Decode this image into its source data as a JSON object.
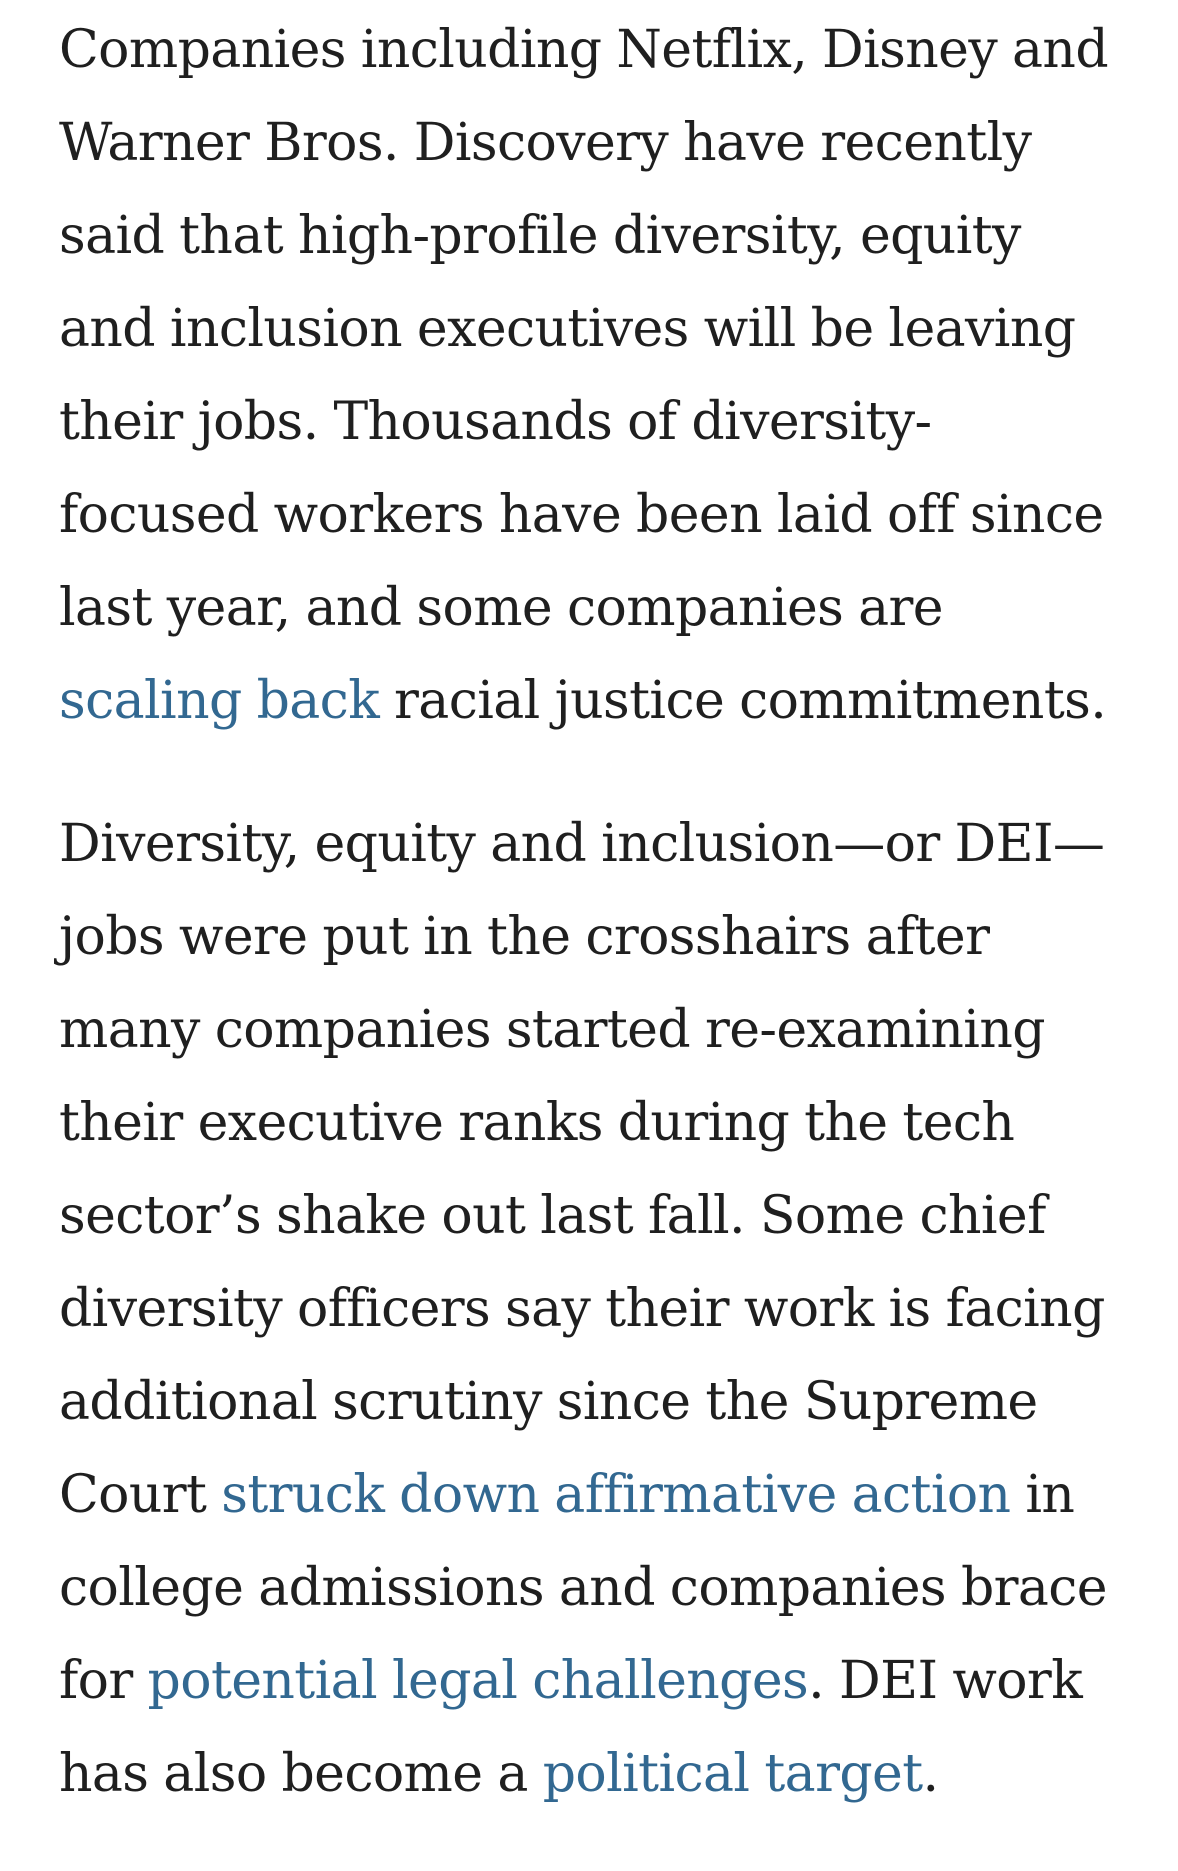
{
  "article": {
    "paragraphs": [
      {
        "lines": [
          [
            {
              "text": "Companies including Netflix, Disney and"
            }
          ],
          [
            {
              "text": "Warner Bros. Discovery have recently"
            }
          ],
          [
            {
              "text": "said that high-profile diversity, equity"
            }
          ],
          [
            {
              "text": "and inclusion executives will be leaving"
            }
          ],
          [
            {
              "text": "their jobs. Thousands of diversity-"
            }
          ],
          [
            {
              "text": "focused workers have been laid off since"
            }
          ],
          [
            {
              "text": "last year, and some companies are"
            }
          ],
          [
            {
              "text": "scaling back",
              "link": true,
              "name": "link-scaling-back"
            },
            {
              "text": " racial justice commitments."
            }
          ]
        ]
      },
      {
        "lines": [
          [
            {
              "text": "Diversity, equity and inclusion—or DEI—"
            }
          ],
          [
            {
              "text": "jobs were put in the crosshairs after"
            }
          ],
          [
            {
              "text": "many companies started re-examining"
            }
          ],
          [
            {
              "text": "their executive ranks during the tech"
            }
          ],
          [
            {
              "text": "sector’s shake out last fall. Some chief"
            }
          ],
          [
            {
              "text": "diversity officers say their work is facing"
            }
          ],
          [
            {
              "text": "additional scrutiny since the Supreme"
            }
          ],
          [
            {
              "text": "Court "
            },
            {
              "text": "struck down affirmative action",
              "link": true,
              "name": "link-struck-down-affirmative-action"
            },
            {
              "text": " in"
            }
          ],
          [
            {
              "text": "college admissions and companies brace"
            }
          ],
          [
            {
              "text": "for "
            },
            {
              "text": "potential legal challenges",
              "link": true,
              "name": "link-potential-legal-challenges"
            },
            {
              "text": ". DEI work"
            }
          ],
          [
            {
              "text": "has also become a "
            },
            {
              "text": "political target",
              "link": true,
              "name": "link-political-target"
            },
            {
              "text": "."
            }
          ]
        ]
      }
    ]
  },
  "colors": {
    "text": "#1f1f1f",
    "link": "#326891",
    "background": "#ffffff"
  }
}
